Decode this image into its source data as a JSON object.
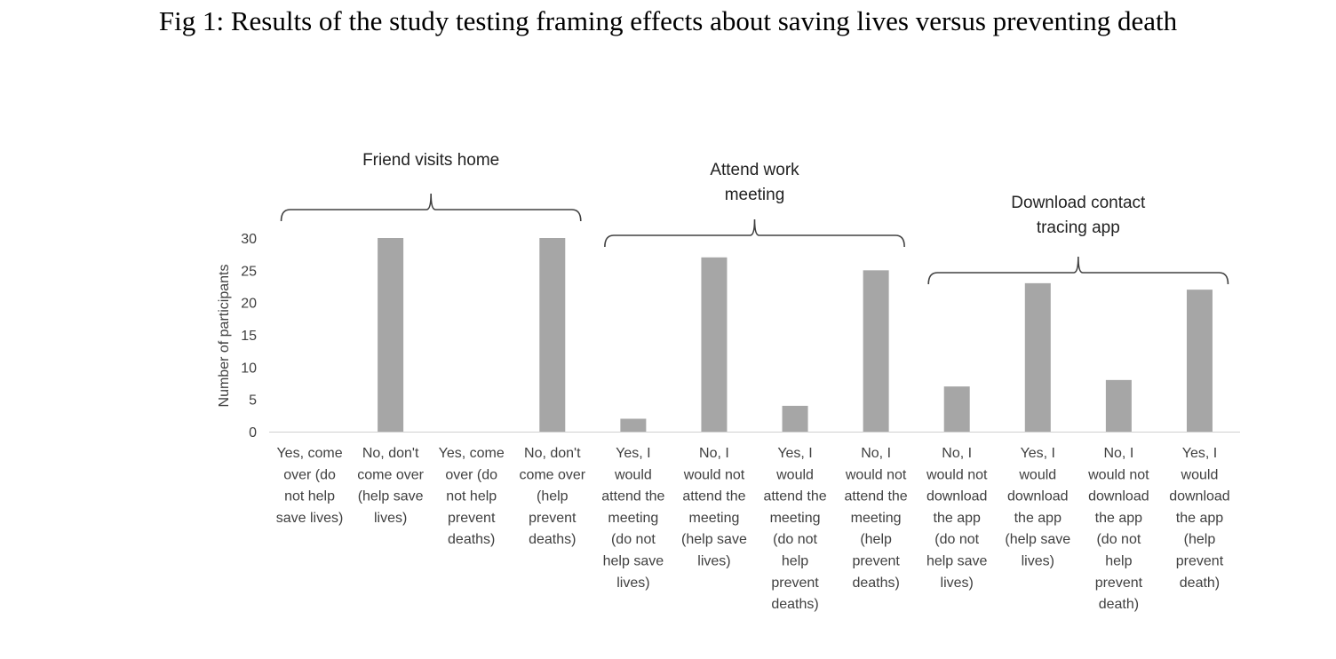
{
  "figure": {
    "title": "Fig 1: Results of the study testing framing effects about saving lives versus preventing death"
  },
  "chart_data": {
    "type": "bar",
    "ylabel": "Number of participants",
    "xlabel": "",
    "ylim": [
      0,
      30
    ],
    "yticks": [
      0,
      5,
      10,
      15,
      20,
      25,
      30
    ],
    "grid": false,
    "color": "#a6a6a6",
    "categories": [
      [
        "Yes, come",
        "over (do",
        "not help",
        "save lives)"
      ],
      [
        "No, don't",
        "come over",
        "(help save",
        "lives)"
      ],
      [
        "Yes, come",
        "over (do",
        "not help",
        "prevent",
        "deaths)"
      ],
      [
        "No, don't",
        "come over",
        "(help",
        "prevent",
        "deaths)"
      ],
      [
        "Yes, I",
        "would",
        "attend the",
        "meeting",
        "(do not",
        "help save",
        "lives)"
      ],
      [
        "No, I",
        "would not",
        "attend the",
        "meeting",
        "(help save",
        "lives)"
      ],
      [
        "Yes, I",
        "would",
        "attend the",
        "meeting",
        "(do not",
        "help",
        "prevent",
        "deaths)"
      ],
      [
        "No, I",
        "would not",
        "attend the",
        "meeting",
        "(help",
        "prevent",
        "deaths)"
      ],
      [
        "No, I",
        "would not",
        "download",
        "the app",
        "(do not",
        "help save",
        "lives)"
      ],
      [
        "Yes, I",
        "would",
        "download",
        "the app",
        "(help save",
        "lives)"
      ],
      [
        "No, I",
        "would not",
        "download",
        "the app",
        "(do not",
        "help",
        "prevent",
        "death)"
      ],
      [
        "Yes, I",
        "would",
        "download",
        "the app",
        "(help",
        "prevent",
        "death)"
      ]
    ],
    "values": [
      0,
      30,
      0,
      30,
      2,
      27,
      4,
      25,
      7,
      23,
      8,
      22
    ],
    "groups": [
      {
        "label": [
          "Friend visits home"
        ],
        "start": 0,
        "end": 3
      },
      {
        "label": [
          "Attend work",
          "meeting"
        ],
        "start": 4,
        "end": 7
      },
      {
        "label": [
          "Download contact",
          "tracing app"
        ],
        "start": 8,
        "end": 11
      }
    ]
  }
}
